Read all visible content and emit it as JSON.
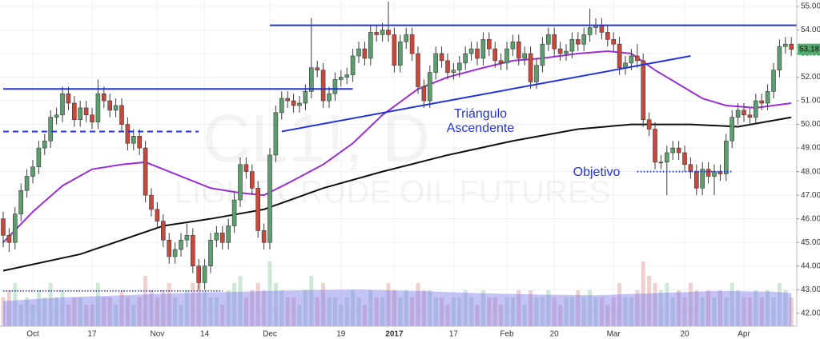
{
  "chart_data": {
    "type": "candlestick",
    "watermark": [
      "CL1!, D",
      "LIGHT CRUDE OIL FUTURES"
    ],
    "annotations": [
      "Triángulo",
      "Ascendente",
      "Objetivo"
    ],
    "ylim": [
      41.45,
      55.27
    ],
    "yticks": [
      {
        "value": 42,
        "label": "42.00"
      },
      {
        "value": 43,
        "label": "43.00"
      },
      {
        "value": 44,
        "label": "44.00"
      },
      {
        "value": 45,
        "label": "45.00"
      },
      {
        "value": 46,
        "label": "46.00"
      },
      {
        "value": 47,
        "label": "47.00"
      },
      {
        "value": 48,
        "label": "48.00"
      },
      {
        "value": 49,
        "label": "49.00"
      },
      {
        "value": 50,
        "label": "50.00"
      },
      {
        "value": 51,
        "label": "51.00"
      },
      {
        "value": 52,
        "label": "52.00"
      },
      {
        "value": 53,
        "label": "53.00"
      },
      {
        "value": 54,
        "label": "54.00"
      },
      {
        "value": 55,
        "label": "55.00"
      }
    ],
    "grid": true,
    "up_color": "#5d9e6e",
    "down_color": "#c9483c",
    "last_price": {
      "value": 53.18,
      "label": "53.18",
      "color": "#4caf6a"
    },
    "categories": [
      null,
      null,
      null,
      null,
      null,
      "Oct",
      null,
      null,
      null,
      null,
      null,
      null,
      null,
      null,
      null,
      "17",
      null,
      null,
      null,
      null,
      null,
      null,
      null,
      null,
      null,
      null,
      "Nov",
      null,
      null,
      null,
      null,
      null,
      null,
      null,
      "14",
      null,
      null,
      null,
      null,
      null,
      null,
      null,
      null,
      null,
      null,
      "Dec",
      null,
      null,
      null,
      null,
      null,
      null,
      null,
      null,
      null,
      null,
      null,
      "19",
      null,
      null,
      null,
      null,
      null,
      null,
      null,
      null,
      "2017",
      null,
      null,
      null,
      null,
      null,
      null,
      null,
      null,
      null,
      "17",
      null,
      null,
      null,
      null,
      null,
      null,
      null,
      null,
      "Feb",
      null,
      null,
      null,
      null,
      null,
      null,
      null,
      "20",
      null,
      null,
      null,
      null,
      null,
      null,
      null,
      null,
      null,
      "Mar",
      null,
      null,
      null,
      null,
      null,
      null,
      null,
      null,
      null,
      null,
      null,
      "20",
      null,
      null,
      null,
      null,
      null,
      null,
      null,
      null,
      null,
      "Apr",
      null,
      null,
      null,
      null,
      null,
      null,
      null,
      null
    ],
    "ohlc": [
      [
        46.0,
        46.3,
        44.8,
        45.3
      ],
      [
        45.3,
        45.6,
        44.6,
        45.0
      ],
      [
        45.0,
        46.5,
        44.7,
        46.2
      ],
      [
        46.2,
        47.5,
        45.9,
        47.2
      ],
      [
        47.2,
        48.1,
        46.9,
        47.8
      ],
      [
        47.8,
        48.5,
        47.5,
        48.2
      ],
      [
        48.2,
        49.3,
        47.9,
        49.0
      ],
      [
        49.0,
        49.6,
        48.7,
        49.3
      ],
      [
        49.3,
        50.6,
        49.0,
        50.3
      ],
      [
        50.3,
        50.7,
        50.0,
        50.4
      ],
      [
        50.4,
        51.6,
        50.1,
        51.3
      ],
      [
        51.3,
        51.6,
        50.6,
        50.9
      ],
      [
        50.9,
        51.2,
        49.9,
        50.2
      ],
      [
        50.2,
        51.0,
        49.9,
        50.7
      ],
      [
        50.7,
        51.0,
        50.1,
        50.4
      ],
      [
        50.4,
        50.7,
        49.8,
        50.1
      ],
      [
        50.1,
        51.9,
        49.8,
        51.3
      ],
      [
        51.3,
        51.6,
        50.7,
        51.0
      ],
      [
        51.0,
        51.3,
        50.3,
        50.6
      ],
      [
        50.6,
        51.1,
        50.3,
        50.8
      ],
      [
        50.8,
        51.1,
        49.7,
        50.0
      ],
      [
        50.0,
        50.3,
        48.9,
        49.2
      ],
      [
        49.2,
        49.8,
        48.9,
        49.5
      ],
      [
        49.5,
        49.8,
        48.7,
        49.0
      ],
      [
        49.0,
        49.3,
        46.7,
        47.0
      ],
      [
        47.0,
        47.3,
        46.1,
        46.4
      ],
      [
        46.4,
        46.7,
        45.6,
        45.9
      ],
      [
        45.9,
        46.2,
        44.8,
        45.1
      ],
      [
        45.1,
        45.4,
        44.1,
        44.4
      ],
      [
        44.4,
        45.0,
        44.1,
        44.7
      ],
      [
        44.7,
        45.4,
        44.4,
        45.1
      ],
      [
        45.1,
        45.8,
        44.8,
        45.3
      ],
      [
        45.3,
        45.6,
        43.7,
        44.0
      ],
      [
        44.0,
        44.3,
        43.0,
        43.3
      ],
      [
        43.3,
        44.3,
        43.0,
        44.0
      ],
      [
        44.0,
        45.4,
        43.7,
        45.1
      ],
      [
        45.1,
        45.7,
        44.8,
        45.4
      ],
      [
        45.4,
        45.7,
        44.7,
        45.0
      ],
      [
        45.0,
        46.0,
        44.7,
        45.7
      ],
      [
        45.7,
        47.1,
        45.4,
        46.8
      ],
      [
        46.8,
        48.6,
        46.5,
        48.3
      ],
      [
        48.3,
        48.6,
        47.7,
        48.0
      ],
      [
        48.0,
        48.3,
        47.0,
        47.3
      ],
      [
        47.3,
        47.6,
        45.2,
        45.5
      ],
      [
        45.5,
        45.8,
        44.7,
        45.0
      ],
      [
        45.0,
        49.0,
        44.7,
        48.7
      ],
      [
        48.7,
        50.8,
        48.4,
        50.5
      ],
      [
        50.5,
        51.4,
        50.2,
        51.1
      ],
      [
        51.1,
        51.4,
        50.7,
        51.0
      ],
      [
        51.0,
        51.3,
        50.5,
        50.8
      ],
      [
        50.8,
        51.2,
        50.5,
        50.9
      ],
      [
        50.9,
        51.7,
        50.6,
        51.4
      ],
      [
        51.4,
        54.5,
        51.1,
        52.4
      ],
      [
        52.4,
        52.7,
        52.0,
        52.3
      ],
      [
        52.3,
        52.6,
        50.7,
        51.0
      ],
      [
        51.0,
        51.6,
        50.7,
        51.3
      ],
      [
        51.3,
        52.2,
        51.0,
        51.9
      ],
      [
        51.9,
        52.3,
        51.6,
        52.0
      ],
      [
        52.0,
        52.4,
        51.7,
        52.1
      ],
      [
        52.1,
        53.2,
        51.8,
        52.9
      ],
      [
        52.9,
        53.5,
        52.6,
        53.2
      ],
      [
        53.2,
        53.5,
        52.5,
        52.8
      ],
      [
        52.8,
        54.2,
        52.5,
        53.9
      ],
      [
        53.9,
        54.2,
        53.5,
        53.8
      ],
      [
        53.8,
        54.3,
        53.5,
        54.0
      ],
      [
        54.0,
        55.2,
        53.5,
        53.8
      ],
      [
        53.8,
        54.1,
        52.2,
        52.5
      ],
      [
        52.5,
        53.8,
        52.2,
        53.5
      ],
      [
        53.5,
        54.1,
        53.2,
        53.8
      ],
      [
        53.8,
        54.1,
        52.7,
        53.0
      ],
      [
        53.0,
        53.3,
        51.3,
        51.6
      ],
      [
        51.6,
        51.9,
        50.7,
        51.0
      ],
      [
        51.0,
        52.5,
        50.7,
        52.2
      ],
      [
        52.2,
        53.3,
        51.9,
        53.0
      ],
      [
        53.0,
        53.3,
        52.4,
        52.7
      ],
      [
        52.7,
        53.0,
        51.9,
        52.2
      ],
      [
        52.2,
        52.6,
        51.9,
        52.3
      ],
      [
        52.3,
        52.9,
        52.0,
        52.6
      ],
      [
        52.6,
        53.3,
        52.3,
        53.0
      ],
      [
        53.0,
        53.5,
        52.7,
        53.2
      ],
      [
        53.2,
        53.5,
        52.5,
        52.8
      ],
      [
        52.8,
        53.9,
        52.5,
        53.6
      ],
      [
        53.6,
        53.9,
        52.9,
        53.2
      ],
      [
        53.2,
        53.5,
        52.4,
        52.7
      ],
      [
        52.7,
        53.0,
        52.3,
        52.6
      ],
      [
        52.6,
        53.5,
        52.3,
        53.2
      ],
      [
        53.2,
        53.8,
        52.9,
        53.5
      ],
      [
        53.5,
        53.8,
        52.5,
        52.8
      ],
      [
        52.8,
        53.3,
        52.5,
        53.0
      ],
      [
        53.0,
        53.3,
        51.5,
        51.8
      ],
      [
        51.8,
        52.8,
        51.5,
        52.5
      ],
      [
        52.5,
        53.7,
        52.2,
        53.4
      ],
      [
        53.4,
        54.1,
        53.1,
        53.8
      ],
      [
        53.8,
        54.1,
        52.9,
        53.2
      ],
      [
        53.2,
        53.5,
        52.7,
        53.0
      ],
      [
        53.0,
        53.4,
        52.7,
        53.1
      ],
      [
        53.1,
        53.9,
        52.8,
        53.6
      ],
      [
        53.6,
        53.9,
        53.1,
        53.4
      ],
      [
        53.4,
        54.1,
        53.1,
        53.8
      ],
      [
        53.8,
        54.9,
        53.5,
        54.1
      ],
      [
        54.1,
        54.5,
        53.8,
        54.2
      ],
      [
        54.2,
        54.5,
        53.6,
        53.9
      ],
      [
        53.9,
        54.2,
        53.3,
        53.6
      ],
      [
        53.6,
        53.9,
        53.1,
        53.4
      ],
      [
        53.4,
        53.7,
        52.1,
        52.4
      ],
      [
        52.4,
        52.9,
        52.1,
        52.6
      ],
      [
        52.6,
        53.2,
        52.3,
        52.9
      ],
      [
        52.9,
        53.4,
        52.4,
        52.7
      ],
      [
        52.7,
        53.0,
        49.9,
        50.2
      ],
      [
        50.2,
        50.5,
        49.5,
        49.8
      ],
      [
        49.8,
        50.1,
        48.1,
        48.4
      ],
      [
        48.4,
        48.7,
        48.1,
        48.4
      ],
      [
        48.4,
        49.1,
        47.0,
        48.8
      ],
      [
        48.8,
        49.3,
        48.5,
        49.0
      ],
      [
        49.0,
        49.3,
        48.5,
        48.8
      ],
      [
        48.8,
        49.1,
        48.0,
        48.3
      ],
      [
        48.3,
        48.6,
        47.7,
        48.0
      ],
      [
        48.0,
        48.3,
        47.0,
        47.3
      ],
      [
        47.3,
        48.4,
        47.0,
        48.1
      ],
      [
        48.1,
        48.4,
        47.5,
        47.8
      ],
      [
        47.8,
        48.3,
        47.0,
        48.0
      ],
      [
        48.0,
        48.3,
        47.6,
        47.9
      ],
      [
        47.9,
        49.6,
        47.6,
        49.3
      ],
      [
        49.3,
        50.6,
        49.0,
        50.3
      ],
      [
        50.3,
        50.9,
        50.0,
        50.6
      ],
      [
        50.6,
        50.9,
        50.1,
        50.4
      ],
      [
        50.4,
        50.7,
        50.0,
        50.3
      ],
      [
        50.3,
        51.3,
        50.0,
        51.0
      ],
      [
        51.0,
        51.3,
        50.6,
        50.9
      ],
      [
        50.9,
        51.7,
        50.6,
        51.4
      ],
      [
        51.4,
        52.6,
        51.1,
        52.3
      ],
      [
        52.3,
        53.6,
        52.0,
        53.3
      ],
      [
        53.3,
        53.7,
        53.0,
        53.4
      ],
      [
        53.4,
        53.7,
        52.9,
        53.18
      ]
    ],
    "moving_averages": [
      {
        "color": "#9b2fd6",
        "x": [
          0,
          5,
          10,
          15,
          20,
          24,
          29,
          35,
          40,
          44,
          48,
          54,
          59,
          64,
          70,
          75,
          81,
          86,
          91,
          97,
          102,
          106,
          110,
          114,
          118,
          122,
          127,
          133
        ],
        "values": [
          45.0,
          46.3,
          47.4,
          48.1,
          48.3,
          48.4,
          47.9,
          47.3,
          47.1,
          47.0,
          47.5,
          48.3,
          49.2,
          50.4,
          51.5,
          52.0,
          52.4,
          52.7,
          52.8,
          53.0,
          53.1,
          53.0,
          52.3,
          51.7,
          51.1,
          50.8,
          50.7,
          50.9
        ]
      },
      {
        "color": "#111111",
        "x": [
          0,
          13,
          27,
          35,
          44,
          54,
          64,
          75,
          86,
          97,
          106,
          116,
          124,
          133
        ],
        "values": [
          43.8,
          44.5,
          45.7,
          46.0,
          46.4,
          47.3,
          48.0,
          48.7,
          49.3,
          49.8,
          50.0,
          50.0,
          49.9,
          50.3
        ]
      }
    ],
    "horizontal_lines": [
      {
        "value": 54.2,
        "x": [
          45,
          134
        ],
        "color": "#2233dd",
        "style": "solid"
      },
      {
        "value": 51.5,
        "x": [
          0,
          59
        ],
        "color": "#2233dd",
        "style": "solid"
      },
      {
        "value": 49.7,
        "x": [
          0,
          33
        ],
        "color": "#2233dd",
        "style": "dashed"
      },
      {
        "value": 48.0,
        "x": [
          107,
          123
        ],
        "color": "#2233dd",
        "style": "dotted"
      }
    ],
    "trend_line": {
      "color": "#2233dd",
      "x": [
        47,
        116
      ],
      "values": [
        49.7,
        52.9
      ]
    },
    "volume": {
      "lim": [
        0,
        10
      ],
      "up_color": "#cfe8d5",
      "down_color": "#f0d0cc",
      "ma_color": "#7b7bf0",
      "values": [
        4,
        5,
        6,
        3,
        4,
        3,
        5,
        4,
        6,
        4,
        5,
        3,
        4,
        4,
        3,
        3,
        6,
        4,
        4,
        3,
        5,
        4,
        3,
        4,
        7,
        5,
        4,
        5,
        6,
        4,
        3,
        5,
        6,
        7,
        5,
        4,
        4,
        3,
        5,
        6,
        7,
        4,
        5,
        6,
        5,
        9,
        6,
        5,
        4,
        4,
        3,
        5,
        7,
        4,
        6,
        4,
        4,
        3,
        4,
        5,
        4,
        3,
        5,
        4,
        4,
        6,
        5,
        4,
        5,
        4,
        6,
        5,
        5,
        4,
        4,
        3,
        4,
        4,
        5,
        4,
        3,
        5,
        4,
        4,
        3,
        4,
        4,
        5,
        3,
        5,
        4,
        4,
        5,
        4,
        3,
        4,
        4,
        5,
        4,
        5,
        4,
        4,
        3,
        4,
        6,
        4,
        4,
        5,
        9,
        7,
        6,
        5,
        6,
        4,
        5,
        4,
        6,
        5,
        4,
        5,
        4,
        5,
        4,
        6,
        5,
        4,
        4,
        5,
        4,
        5,
        4,
        6,
        5,
        4
      ],
      "ma": {
        "x": [
          0,
          10,
          20,
          30,
          40,
          50,
          60,
          70,
          80,
          90,
          100,
          110,
          120,
          130,
          133
        ],
        "values": [
          3.5,
          4.0,
          4.3,
          4.6,
          4.8,
          5.0,
          5.1,
          4.9,
          4.6,
          4.4,
          4.3,
          4.6,
          4.9,
          4.8,
          4.6
        ]
      },
      "ref": {
        "value": 4.9,
        "x": [
          0,
          37
        ],
        "color": "#2233dd"
      }
    }
  }
}
